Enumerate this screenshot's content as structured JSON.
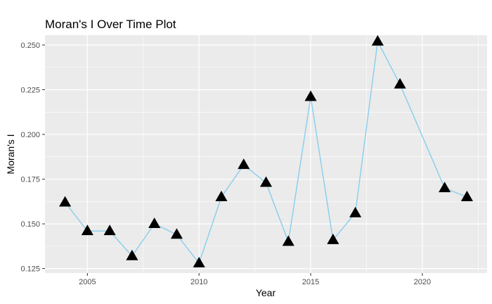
{
  "chart_data": {
    "type": "line",
    "title": "Moran's I Over Time Plot",
    "xlabel": "Year",
    "ylabel": "Moran's I",
    "x": [
      2004,
      2005,
      2006,
      2007,
      2008,
      2009,
      2010,
      2011,
      2012,
      2013,
      2014,
      2015,
      2016,
      2017,
      2018,
      2019,
      2021,
      2022
    ],
    "y": [
      0.162,
      0.146,
      0.146,
      0.132,
      0.15,
      0.144,
      0.128,
      0.165,
      0.183,
      0.173,
      0.14,
      0.221,
      0.141,
      0.156,
      0.252,
      0.228,
      0.17,
      0.165
    ],
    "xlim": [
      2003.1,
      2022.9
    ],
    "ylim": [
      0.1225,
      0.2555
    ],
    "x_ticks": [
      2005,
      2010,
      2015,
      2020
    ],
    "x_tick_labels": [
      "2005",
      "2010",
      "2015",
      "2020"
    ],
    "y_ticks": [
      0.125,
      0.15,
      0.175,
      0.2,
      0.225,
      0.25
    ],
    "y_tick_labels": [
      "0.125",
      "0.150",
      "0.175",
      "0.200",
      "0.225",
      "0.250"
    ],
    "grid": true,
    "marker": "triangle",
    "colors": {
      "line": "#87CEEB",
      "marker": "#000000",
      "panel": "#EBEBEB",
      "grid": "#FFFFFF"
    }
  }
}
